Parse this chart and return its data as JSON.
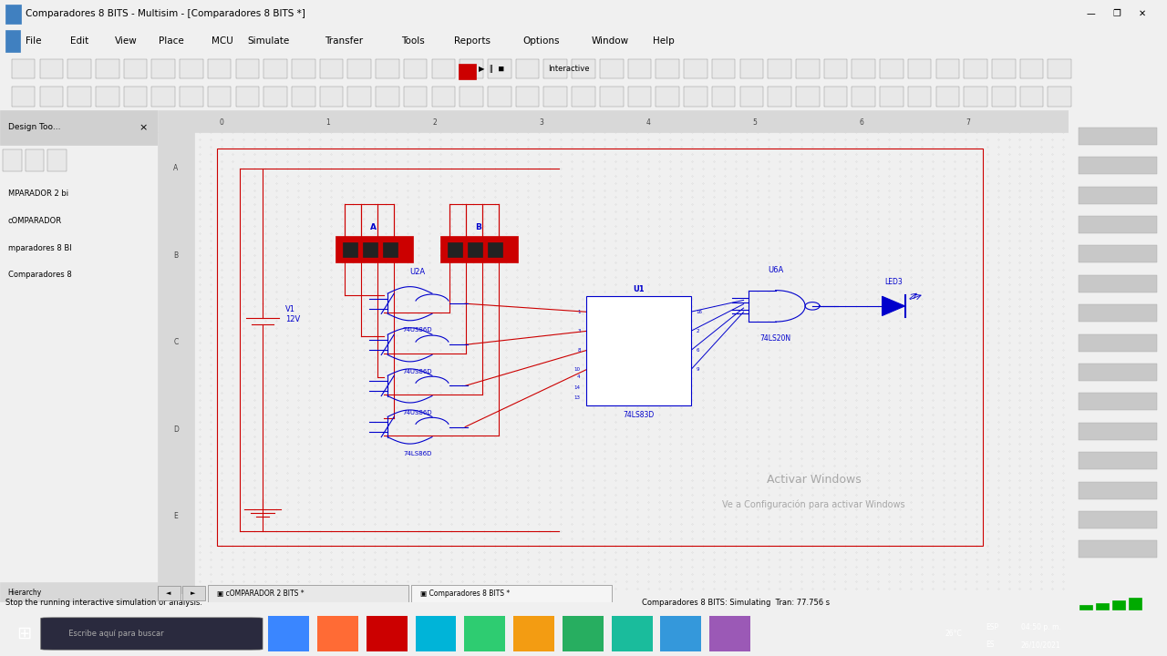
{
  "title_bar": "Comparadores 8 BITS - Multisim - [Comparadores 8 BITS *]",
  "bg_color": "#f0f0f0",
  "canvas_bg": "#ffffff",
  "dot_color": "#c8c8c8",
  "menu_items": [
    "File",
    "Edit",
    "View",
    "Place",
    "MCU",
    "Simulate",
    "Transfer",
    "Tools",
    "Reports",
    "Options",
    "Window",
    "Help"
  ],
  "panel_items": [
    "MPARADOR 2 bi",
    "cOMPARADOR",
    "mparadores 8 BI",
    "Comparadores 8"
  ],
  "tab1": "cOMPARADOR 2 BITS *",
  "tab2": "Comparadores 8 BITS *",
  "status_left": "Stop the running interactive simulation or analysis.",
  "status_right": "Comparadores 8 BITS: Simulating  Tran: 77.756 s",
  "time": "04:50 p. m.",
  "date": "26/10/2021",
  "temp": "26°C",
  "wire_color": "#cc0000",
  "component_color": "#0000cc",
  "title_bg": "#d4d0c8",
  "menu_bg": "#ece9d8"
}
